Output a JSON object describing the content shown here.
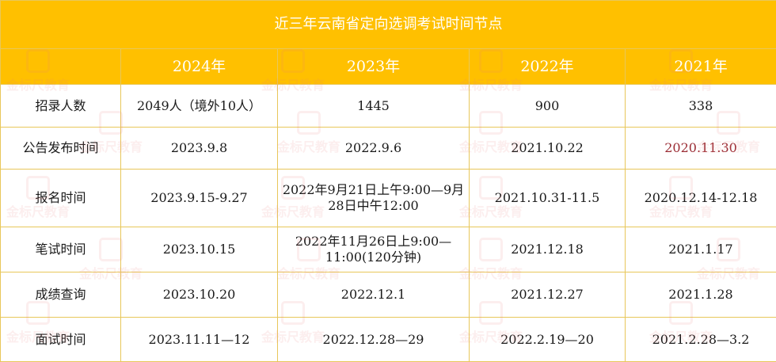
{
  "title": "近三年云南省定向选调考试时间节点",
  "columns": [
    "2024年",
    "2023年",
    "2022年",
    "2021年"
  ],
  "rows": [
    {
      "label": "招录人数",
      "values": [
        "2049人（境外10人）",
        "1445",
        "900",
        "338"
      ]
    },
    {
      "label": "公告发布时间",
      "values": [
        "2023.9.8",
        "2022.9.6",
        "2021.10.22",
        "2020.11.30"
      ]
    },
    {
      "label": "报名时间",
      "values": [
        "2023.9.15-9.27",
        "2022年9月21日上午9:00—9月28日中午12:00",
        "2021.10.31-11.5",
        "2020.12.14-12.18"
      ]
    },
    {
      "label": "笔试时间",
      "values": [
        "2023.10.15",
        "2022年11月26日上9:00—11:00(120分钟)",
        "2021.12.18",
        "2021.1.17"
      ]
    },
    {
      "label": "成绩查询",
      "values": [
        "2023.10.20",
        "2022.12.1",
        "2021.12.27",
        "2021.1.28"
      ]
    },
    {
      "label": "面试时间",
      "values": [
        "2023.11.11—12",
        "2022.12.28—29",
        "2022.2.19—20",
        "2021.2.28—3.2"
      ]
    }
  ],
  "colors": {
    "header_bg": "#ffc000",
    "header_text": "#ffffff",
    "border": "#e8c75a",
    "highlight_text": "#9b2d35"
  },
  "watermark": "金标尺教育"
}
